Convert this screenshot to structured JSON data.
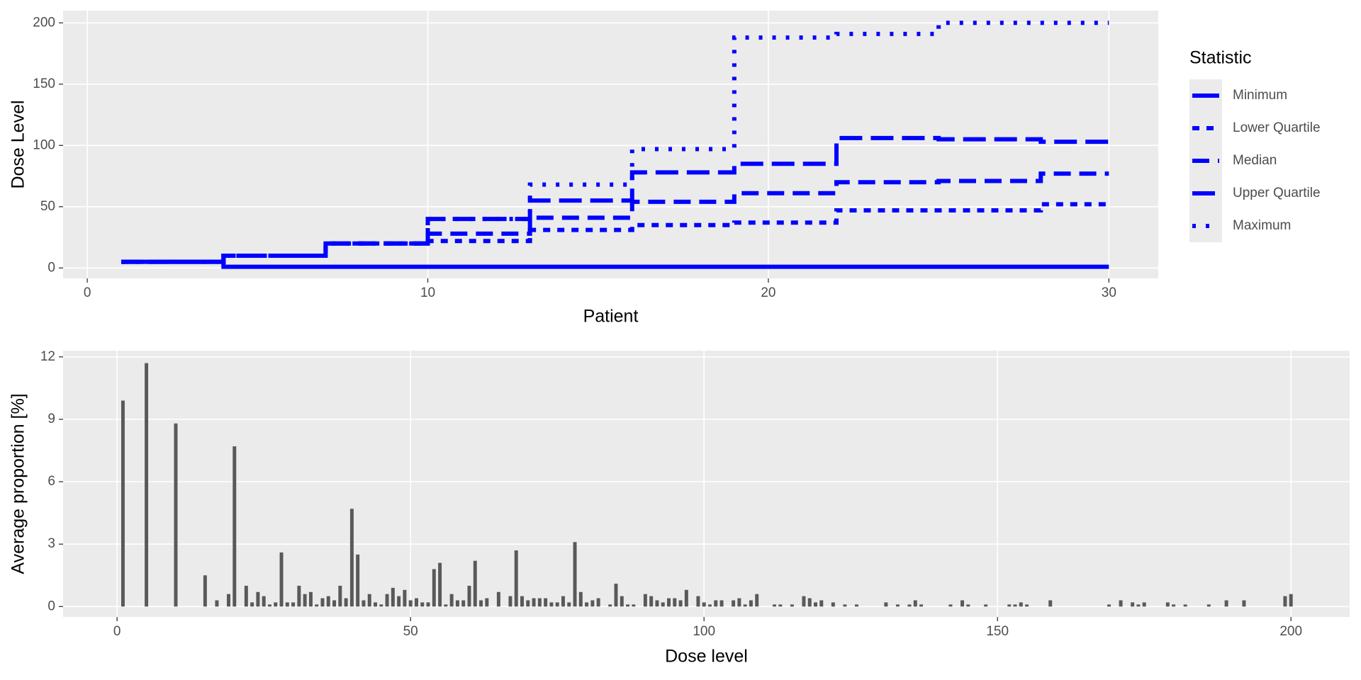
{
  "chart_data": [
    {
      "type": "line",
      "step": true,
      "xlabel": "Patient",
      "ylabel": "Dose Level",
      "x": [
        1,
        2,
        3,
        4,
        5,
        6,
        7,
        8,
        9,
        10,
        11,
        12,
        13,
        14,
        15,
        16,
        17,
        18,
        19,
        20,
        21,
        22,
        23,
        24,
        25,
        26,
        27,
        28,
        29,
        30
      ],
      "xlim": [
        -0.71,
        31.45
      ],
      "ylim": [
        -8.5,
        210
      ],
      "xticks": [
        0,
        10,
        20,
        30
      ],
      "yticks": [
        0,
        50,
        100,
        150,
        200
      ],
      "grid": true,
      "legend_title": "Statistic",
      "legend": "right",
      "series": [
        {
          "name": "Minimum",
          "color": "#0000ff",
          "linetype": "solid",
          "values": [
            5,
            5,
            5,
            1,
            1,
            1,
            1,
            1,
            1,
            1,
            1,
            1,
            1,
            1,
            1,
            1,
            1,
            1,
            1,
            1,
            1,
            1,
            1,
            1,
            1,
            1,
            1,
            1,
            1,
            1
          ]
        },
        {
          "name": "Lower Quartile",
          "color": "#0000ff",
          "linetype": "dashed",
          "values": [
            5,
            5,
            5,
            10,
            10,
            10,
            20,
            20,
            20,
            22,
            22,
            22,
            31,
            31,
            31,
            35,
            35,
            35,
            37,
            37,
            37,
            47,
            47,
            47,
            47,
            47,
            47,
            52,
            52,
            52
          ]
        },
        {
          "name": "Median",
          "color": "#0000ff",
          "linetype": "longdash",
          "values": [
            5,
            5,
            5,
            10,
            10,
            10,
            20,
            20,
            20,
            28,
            28,
            28,
            41,
            41,
            41,
            54,
            54,
            54,
            61,
            61,
            61,
            70,
            70,
            70,
            71,
            71,
            71,
            77,
            77,
            77
          ]
        },
        {
          "name": "Upper Quartile",
          "color": "#0000ff",
          "linetype": "twodash",
          "values": [
            5,
            5,
            5,
            10,
            10,
            10,
            20,
            20,
            20,
            40,
            40,
            40,
            55,
            55,
            55,
            78,
            78,
            78,
            85,
            85,
            85,
            106,
            106,
            106,
            105,
            105,
            105,
            103,
            103,
            103
          ]
        },
        {
          "name": "Maximum",
          "color": "#0000ff",
          "linetype": "dotted",
          "values": [
            5,
            5,
            5,
            10,
            10,
            10,
            20,
            20,
            20,
            40,
            40,
            40,
            68,
            68,
            68,
            97,
            97,
            97,
            188,
            188,
            188,
            191,
            191,
            191,
            200,
            200,
            200,
            200,
            200,
            200
          ]
        }
      ]
    },
    {
      "type": "bar",
      "xlabel": "Dose level",
      "ylabel": "Average proportion [%]",
      "color": "#595959",
      "grid": true,
      "xlim": [
        -9.2,
        210
      ],
      "ylim": [
        -0.5,
        12.3
      ],
      "xticks": [
        0,
        50,
        100,
        150,
        200
      ],
      "yticks": [
        0,
        3,
        6,
        9,
        12
      ],
      "x": [
        1,
        5,
        10,
        15,
        17,
        19,
        20,
        22,
        23,
        24,
        25,
        26,
        27,
        28,
        29,
        30,
        31,
        32,
        33,
        34,
        35,
        36,
        37,
        38,
        39,
        40,
        41,
        42,
        43,
        44,
        45,
        46,
        47,
        48,
        49,
        50,
        51,
        52,
        53,
        54,
        55,
        56,
        57,
        58,
        59,
        60,
        61,
        62,
        63,
        65,
        67,
        68,
        69,
        70,
        71,
        72,
        73,
        74,
        75,
        76,
        77,
        78,
        79,
        80,
        81,
        82,
        84,
        85,
        86,
        87,
        88,
        90,
        91,
        92,
        93,
        94,
        95,
        96,
        97,
        99,
        100,
        101,
        102,
        103,
        105,
        106,
        107,
        108,
        109,
        112,
        113,
        115,
        117,
        118,
        119,
        120,
        122,
        124,
        126,
        131,
        133,
        135,
        136,
        137,
        142,
        144,
        145,
        148,
        152,
        153,
        154,
        155,
        159,
        169,
        171,
        173,
        174,
        175,
        179,
        180,
        182,
        186,
        189,
        192,
        199,
        200
      ],
      "values": [
        9.9,
        11.7,
        8.8,
        1.5,
        0.3,
        0.6,
        7.7,
        1.0,
        0.2,
        0.7,
        0.5,
        0.1,
        0.2,
        2.6,
        0.2,
        0.2,
        1.0,
        0.6,
        0.7,
        0.1,
        0.4,
        0.5,
        0.3,
        1.0,
        0.4,
        4.7,
        2.5,
        0.3,
        0.6,
        0.2,
        0.1,
        0.6,
        0.9,
        0.5,
        0.8,
        0.3,
        0.4,
        0.2,
        0.2,
        1.8,
        2.1,
        0.1,
        0.6,
        0.3,
        0.3,
        1.0,
        2.2,
        0.3,
        0.4,
        0.7,
        0.5,
        2.7,
        0.5,
        0.3,
        0.4,
        0.4,
        0.4,
        0.2,
        0.2,
        0.5,
        0.2,
        3.1,
        0.7,
        0.2,
        0.3,
        0.4,
        0.1,
        1.1,
        0.5,
        0.1,
        0.1,
        0.6,
        0.5,
        0.3,
        0.2,
        0.4,
        0.4,
        0.3,
        0.8,
        0.5,
        0.2,
        0.1,
        0.3,
        0.3,
        0.3,
        0.4,
        0.1,
        0.3,
        0.6,
        0.1,
        0.1,
        0.1,
        0.5,
        0.4,
        0.2,
        0.3,
        0.2,
        0.1,
        0.1,
        0.2,
        0.1,
        0.1,
        0.3,
        0.1,
        0.1,
        0.3,
        0.1,
        0.1,
        0.1,
        0.1,
        0.2,
        0.1,
        0.3,
        0.1,
        0.3,
        0.2,
        0.1,
        0.2,
        0.2,
        0.1,
        0.1,
        0.1,
        0.3,
        0.3,
        0.5,
        0.6
      ]
    }
  ]
}
